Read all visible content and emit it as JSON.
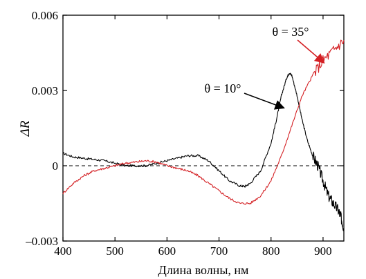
{
  "chart_data": {
    "type": "line",
    "title": "",
    "xlabel": "Длина волны, нм",
    "ylabel": "ΔR",
    "xlim": [
      400,
      940
    ],
    "ylim": [
      -0.003,
      0.006
    ],
    "xticks": [
      400,
      500,
      600,
      700,
      800,
      900
    ],
    "xtick_labels": [
      "400",
      "500",
      "600",
      "700",
      "800",
      "900"
    ],
    "yticks": [
      -0.003,
      0,
      0.003,
      0.006
    ],
    "ytick_labels": [
      "–0.003",
      "0",
      "0.003",
      "0.006"
    ],
    "grid": false,
    "baseline": {
      "y": 0,
      "style": "dashed"
    },
    "series": [
      {
        "name": "θ = 10°",
        "color": "#000000",
        "x": [
          400,
          420,
          440,
          460,
          480,
          500,
          520,
          540,
          560,
          580,
          600,
          620,
          640,
          660,
          680,
          700,
          720,
          740,
          750,
          760,
          780,
          800,
          810,
          820,
          830,
          835,
          840,
          850,
          860,
          870,
          880,
          890,
          900,
          910,
          920,
          930,
          935,
          940
        ],
        "y": [
          0.0005,
          0.00035,
          0.0003,
          0.00025,
          0.0002,
          0.0001,
          0.0,
          0.0,
          0.0,
          0.0001,
          0.0002,
          0.0003,
          0.0004,
          0.0004,
          0.0002,
          -0.0002,
          -0.0006,
          -0.0008,
          -0.00082,
          -0.0007,
          -0.0002,
          0.0009,
          0.0018,
          0.0028,
          0.0035,
          0.0037,
          0.0036,
          0.0028,
          0.0018,
          0.001,
          0.0004,
          0.0,
          -0.0006,
          -0.0012,
          -0.0015,
          -0.0018,
          -0.0021,
          -0.0025
        ]
      },
      {
        "name": "θ = 35°",
        "color": "#d42024",
        "x": [
          400,
          420,
          440,
          460,
          480,
          500,
          520,
          540,
          560,
          580,
          600,
          620,
          640,
          660,
          680,
          700,
          720,
          740,
          760,
          780,
          800,
          820,
          840,
          860,
          880,
          900,
          920,
          940
        ],
        "y": [
          -0.0011,
          -0.0007,
          -0.0004,
          -0.0002,
          -0.0001,
          0.0,
          0.0001,
          0.00015,
          0.0002,
          0.00015,
          0.0,
          -0.0001,
          -0.0002,
          -0.0004,
          -0.0007,
          -0.001,
          -0.0013,
          -0.0015,
          -0.0015,
          -0.0012,
          -0.0006,
          0.0004,
          0.0016,
          0.0028,
          0.0036,
          0.0042,
          0.0046,
          0.005
        ]
      }
    ],
    "annotations": [
      {
        "text": "θ = 10°",
        "series": "θ = 10°",
        "arrow_to": [
          825,
          0.0023
        ]
      },
      {
        "text": "θ = 35°",
        "series": "θ = 35°",
        "arrow_to": [
          902,
          0.0041
        ]
      }
    ]
  }
}
